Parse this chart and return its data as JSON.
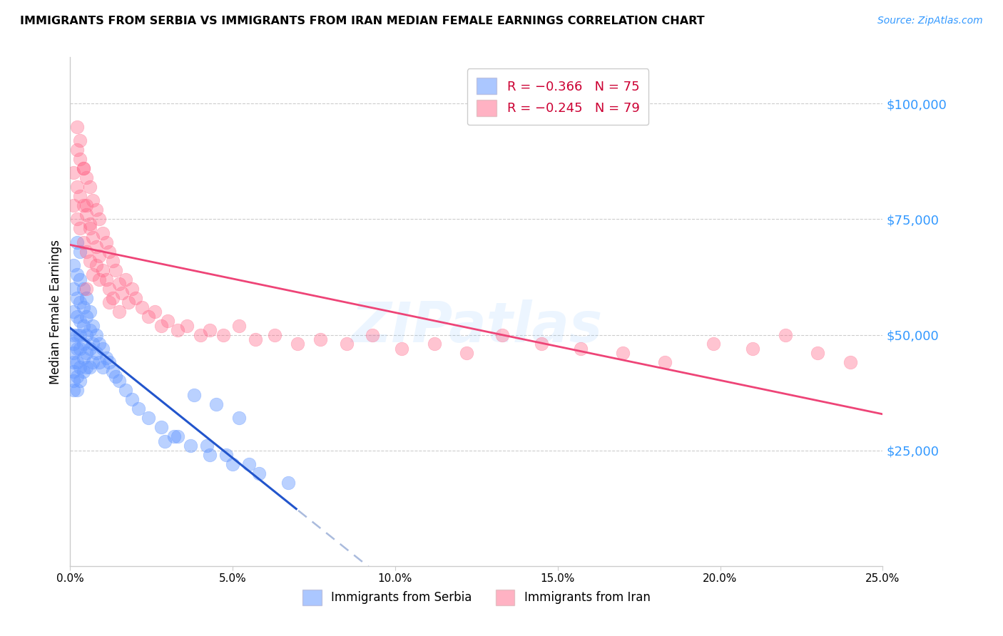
{
  "title": "IMMIGRANTS FROM SERBIA VS IMMIGRANTS FROM IRAN MEDIAN FEMALE EARNINGS CORRELATION CHART",
  "source": "Source: ZipAtlas.com",
  "ylabel": "Median Female Earnings",
  "ytick_labels": [
    "$25,000",
    "$50,000",
    "$75,000",
    "$100,000"
  ],
  "ytick_values": [
    25000,
    50000,
    75000,
    100000
  ],
  "ylim": [
    0,
    110000
  ],
  "xlim": [
    0,
    0.25
  ],
  "serbia_color": "#6699FF",
  "iran_color": "#FF6688",
  "serbia_R": -0.366,
  "serbia_N": 75,
  "iran_R": -0.245,
  "iran_N": 79,
  "serbia_label": "Immigrants from Serbia",
  "iran_label": "Immigrants from Iran",
  "watermark": "ZIPatlas",
  "serbia_scatter_x": [
    0.001,
    0.001,
    0.001,
    0.001,
    0.001,
    0.001,
    0.001,
    0.001,
    0.001,
    0.001,
    0.002,
    0.002,
    0.002,
    0.002,
    0.002,
    0.002,
    0.002,
    0.002,
    0.002,
    0.003,
    0.003,
    0.003,
    0.003,
    0.003,
    0.003,
    0.003,
    0.003,
    0.004,
    0.004,
    0.004,
    0.004,
    0.004,
    0.004,
    0.005,
    0.005,
    0.005,
    0.005,
    0.005,
    0.006,
    0.006,
    0.006,
    0.006,
    0.007,
    0.007,
    0.007,
    0.008,
    0.008,
    0.009,
    0.009,
    0.01,
    0.01,
    0.011,
    0.012,
    0.013,
    0.014,
    0.015,
    0.017,
    0.019,
    0.021,
    0.024,
    0.028,
    0.032,
    0.037,
    0.043,
    0.05,
    0.058,
    0.067,
    0.045,
    0.052,
    0.038,
    0.033,
    0.042,
    0.048,
    0.055,
    0.029
  ],
  "serbia_scatter_y": [
    65000,
    60000,
    55000,
    50000,
    48000,
    46000,
    44000,
    42000,
    40000,
    38000,
    70000,
    63000,
    58000,
    54000,
    50000,
    47000,
    44000,
    41000,
    38000,
    68000,
    62000,
    57000,
    53000,
    50000,
    47000,
    43000,
    40000,
    60000,
    56000,
    52000,
    48000,
    45000,
    42000,
    58000,
    54000,
    50000,
    46000,
    43000,
    55000,
    51000,
    47000,
    43000,
    52000,
    48000,
    44000,
    50000,
    46000,
    48000,
    44000,
    47000,
    43000,
    45000,
    44000,
    42000,
    41000,
    40000,
    38000,
    36000,
    34000,
    32000,
    30000,
    28000,
    26000,
    24000,
    22000,
    20000,
    18000,
    35000,
    32000,
    37000,
    28000,
    26000,
    24000,
    22000,
    27000
  ],
  "iran_scatter_x": [
    0.001,
    0.001,
    0.002,
    0.002,
    0.002,
    0.003,
    0.003,
    0.003,
    0.004,
    0.004,
    0.004,
    0.005,
    0.005,
    0.005,
    0.005,
    0.006,
    0.006,
    0.006,
    0.007,
    0.007,
    0.007,
    0.008,
    0.008,
    0.009,
    0.009,
    0.01,
    0.01,
    0.011,
    0.011,
    0.012,
    0.012,
    0.013,
    0.013,
    0.014,
    0.015,
    0.016,
    0.017,
    0.018,
    0.019,
    0.02,
    0.022,
    0.024,
    0.026,
    0.028,
    0.03,
    0.033,
    0.036,
    0.04,
    0.043,
    0.047,
    0.052,
    0.057,
    0.063,
    0.07,
    0.077,
    0.085,
    0.093,
    0.102,
    0.112,
    0.122,
    0.133,
    0.145,
    0.157,
    0.17,
    0.183,
    0.198,
    0.21,
    0.22,
    0.23,
    0.24,
    0.003,
    0.004,
    0.006,
    0.008,
    0.002,
    0.005,
    0.009,
    0.012,
    0.015
  ],
  "iran_scatter_y": [
    85000,
    78000,
    90000,
    82000,
    75000,
    88000,
    80000,
    73000,
    86000,
    78000,
    70000,
    84000,
    76000,
    68000,
    60000,
    82000,
    74000,
    66000,
    79000,
    71000,
    63000,
    77000,
    69000,
    75000,
    67000,
    72000,
    64000,
    70000,
    62000,
    68000,
    60000,
    66000,
    58000,
    64000,
    61000,
    59000,
    62000,
    57000,
    60000,
    58000,
    56000,
    54000,
    55000,
    52000,
    53000,
    51000,
    52000,
    50000,
    51000,
    50000,
    52000,
    49000,
    50000,
    48000,
    49000,
    48000,
    50000,
    47000,
    48000,
    46000,
    50000,
    48000,
    47000,
    46000,
    44000,
    48000,
    47000,
    50000,
    46000,
    44000,
    92000,
    86000,
    73000,
    65000,
    95000,
    78000,
    62000,
    57000,
    55000
  ]
}
